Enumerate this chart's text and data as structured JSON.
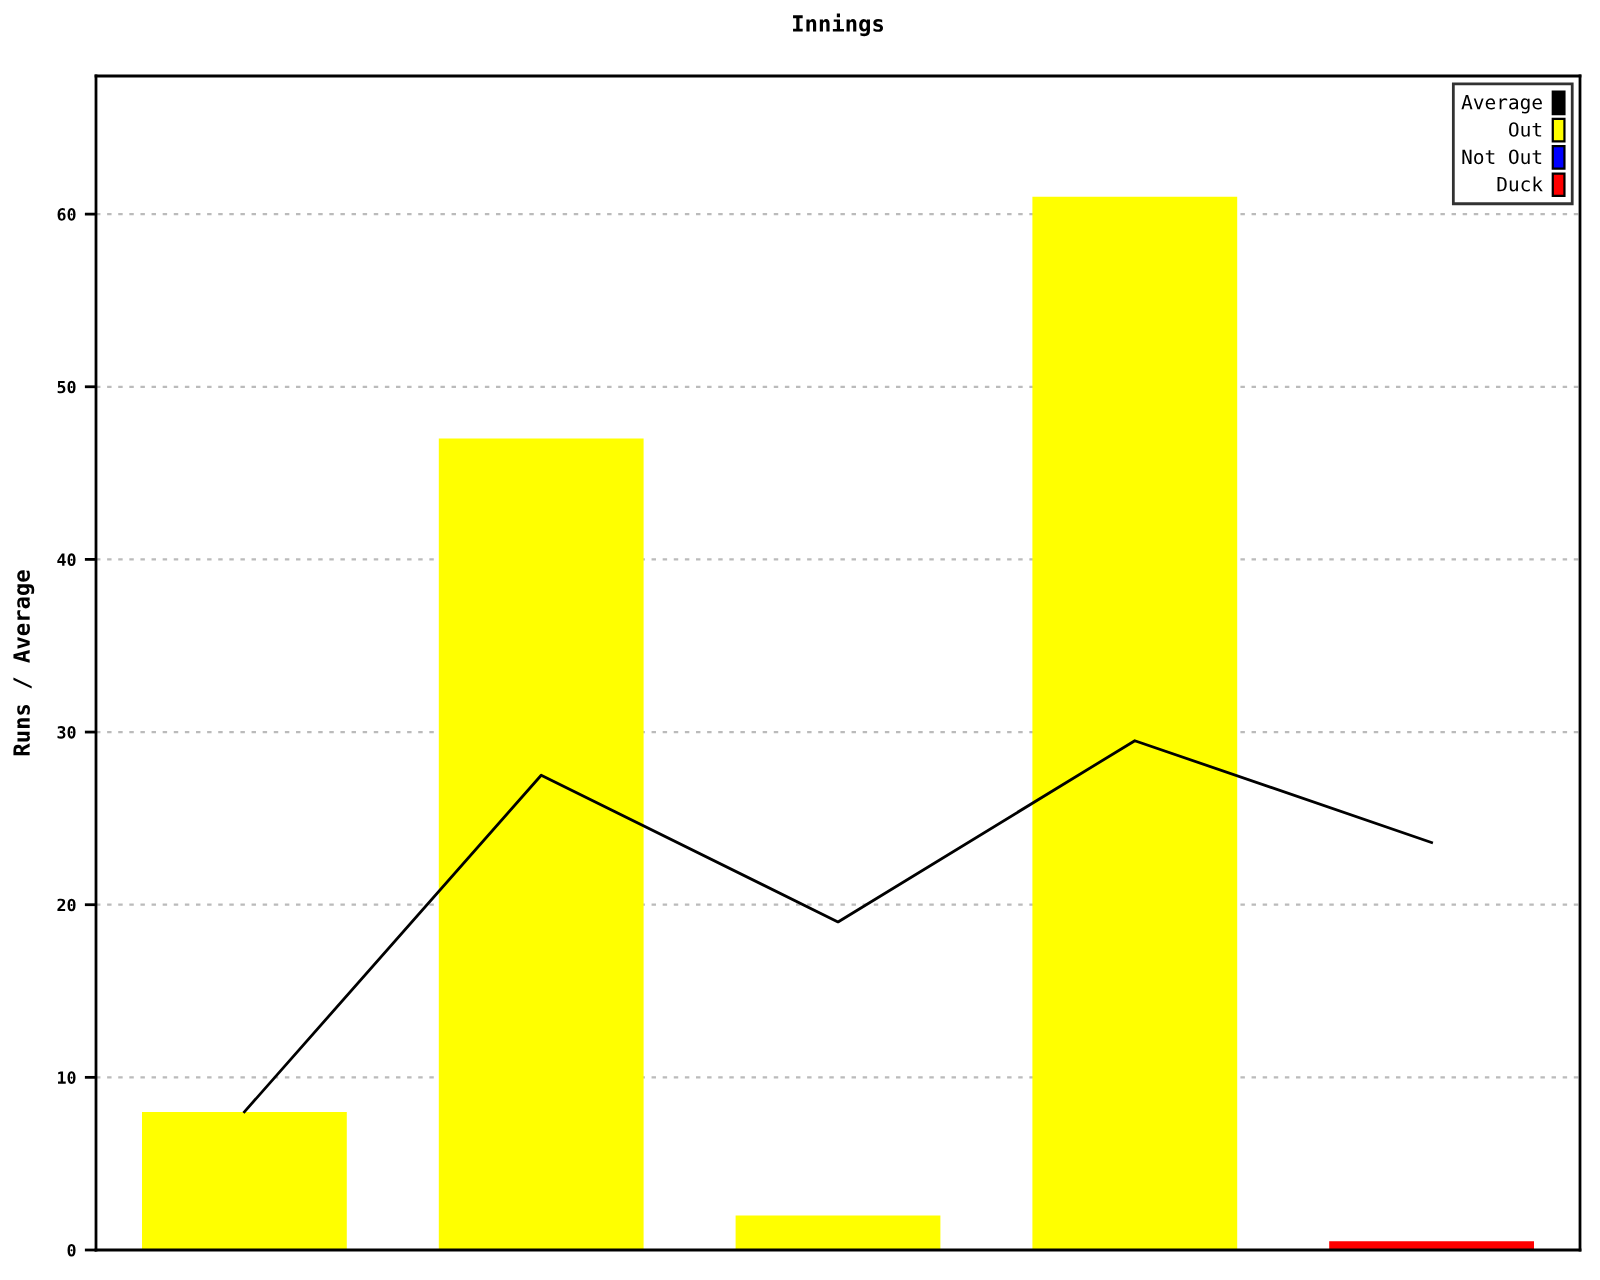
{
  "chart_data": {
    "type": "bar",
    "title": "Innings",
    "ylabel": "Runs / Average",
    "categories": [
      null,
      null,
      null,
      null,
      null
    ],
    "stacked": true,
    "series": [
      {
        "name": "Average",
        "type": "line",
        "color": "#000000",
        "values": [
          8,
          27.5,
          19,
          29.5,
          23.6
        ]
      },
      {
        "name": "Out",
        "color": "#ffff00",
        "values": [
          8,
          47,
          2,
          61,
          null
        ]
      },
      {
        "name": "Not Out",
        "color": "#0000ff",
        "values": [
          null,
          null,
          null,
          null,
          null
        ]
      },
      {
        "name": "Duck",
        "color": "#ff0000",
        "values": [
          null,
          null,
          null,
          null,
          0.5
        ]
      }
    ],
    "ylim": [
      0,
      68
    ],
    "yticks": [
      0,
      10,
      20,
      30,
      40,
      50,
      60
    ],
    "grid": "y",
    "legend": "top right"
  }
}
